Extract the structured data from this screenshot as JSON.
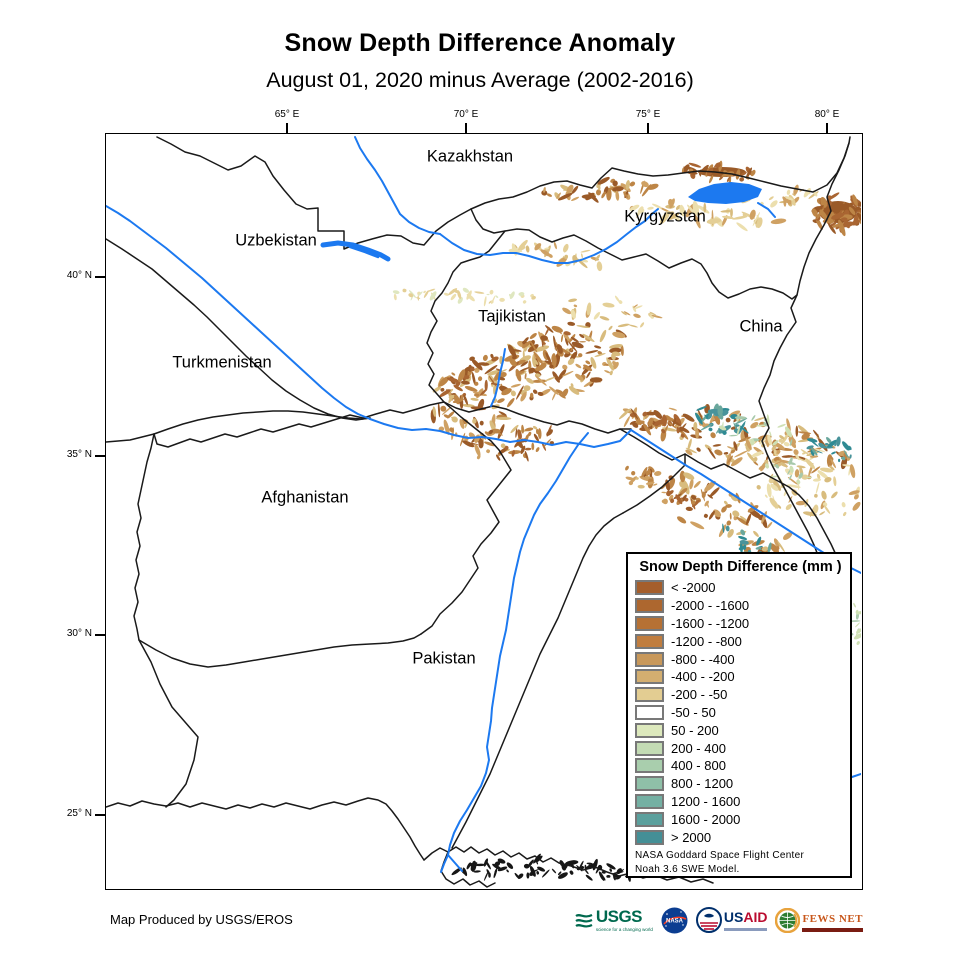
{
  "page": {
    "title": "Snow Depth Difference Anomaly",
    "subtitle": "August 01, 2020 minus Average (2002-2016)",
    "credit": "Map Produced by USGS/EROS"
  },
  "axes": {
    "top": [
      "65° E",
      "70° E",
      "75° E",
      "80° E"
    ],
    "left": [
      "40° N",
      "35° N",
      "30° N",
      "25° N"
    ]
  },
  "map_labels": {
    "kazakhstan": "Kazakhstan",
    "kyrgyzstan": "Kyrgyzstan",
    "uzbekistan": "Uzbekistan",
    "turkmenistan": "Turkmenistan",
    "tajikistan": "Tajikistan",
    "china": "China",
    "afghanistan": "Afghanistan",
    "pakistan": "Pakistan"
  },
  "legend": {
    "title": "Snow Depth Difference (mm )",
    "items": [
      {
        "label": "< -2000",
        "color": "#a55e2b"
      },
      {
        "label": "-2000 - -1600",
        "color": "#ad672f"
      },
      {
        "label": "-1600 - -1200",
        "color": "#b67134"
      },
      {
        "label": "-1200 - -800",
        "color": "#c07d3f"
      },
      {
        "label": "-800 - -400",
        "color": "#c8985a"
      },
      {
        "label": "-400 - -200",
        "color": "#d3ae70"
      },
      {
        "label": "-200 - -50",
        "color": "#e3cd92"
      },
      {
        "label": "-50 - 50",
        "color": "#ffffff"
      },
      {
        "label": "50 - 200",
        "color": "#dde9bd"
      },
      {
        "label": "200 - 400",
        "color": "#c3dbb4"
      },
      {
        "label": "400 - 800",
        "color": "#a9cead"
      },
      {
        "label": "800 - 1200",
        "color": "#8fc0a8"
      },
      {
        "label": "1200 - 1600",
        "color": "#74b0a3"
      },
      {
        "label": "1600 - 2000",
        "color": "#5ba09d"
      },
      {
        "label": "> 2000",
        "color": "#448f96"
      }
    ],
    "source_line1": "NASA Goddard Space Flight Center",
    "source_line2": "Noah 3.6 SWE  Model."
  },
  "logos": {
    "usgs": "USGS",
    "usgs_tagline": "science for a changing world",
    "nasa": "NASA",
    "usaid_us": "US",
    "usaid_aid": "AID",
    "fews": "FEWS NET"
  },
  "colors": {
    "river_blue": "#1c79f0",
    "border_black": "#1a1a1a"
  }
}
